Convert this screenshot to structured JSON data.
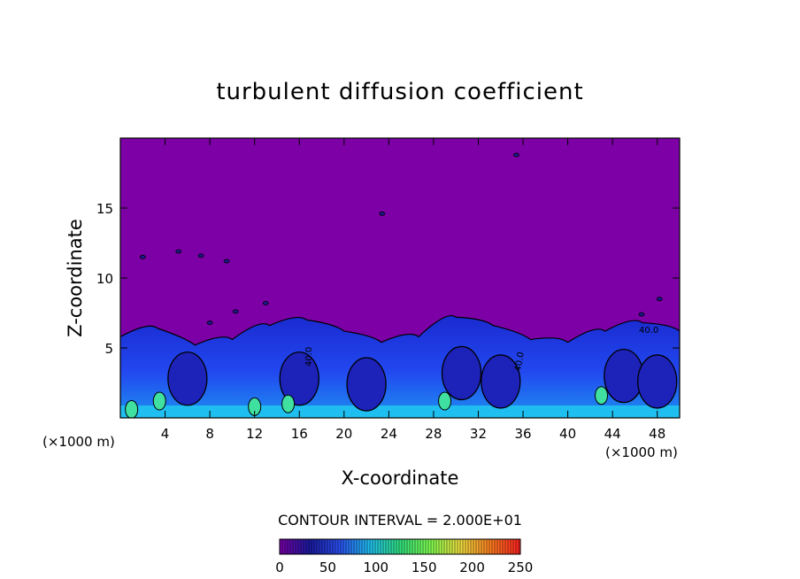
{
  "chart_data": {
    "type": "heatmap",
    "title": "turbulent diffusion coefficient",
    "xlabel": "X-coordinate",
    "ylabel": "Z-coordinate",
    "x_unit_left": "(×1000 m)",
    "x_unit_right": "(×1000 m)",
    "xlim": [
      0,
      50
    ],
    "ylim": [
      0,
      20
    ],
    "xticks": [
      "4",
      "8",
      "12",
      "16",
      "20",
      "24",
      "28",
      "32",
      "36",
      "40",
      "44",
      "48"
    ],
    "yticks": [
      "5",
      "10",
      "15"
    ],
    "background_value": 0,
    "turbulent_layer_top_km": [
      5.8,
      6.4,
      5.2,
      5.6,
      6.6,
      7.0,
      6.2,
      5.4,
      5.8,
      7.2,
      6.6,
      5.6,
      5.4,
      6.2,
      6.8,
      6.2
    ],
    "contour_interval_label": "CONTOUR INTERVAL = 2.000E+01",
    "colorbar": {
      "min": 0,
      "max": 250,
      "ticks": [
        "0",
        "50",
        "100",
        "150",
        "200",
        "250"
      ],
      "colors": [
        "#7a00a8",
        "#1a1aa0",
        "#2a50f0",
        "#20c0f0",
        "#30e080",
        "#80ff50",
        "#f0e040",
        "#ff8020",
        "#ff2020"
      ]
    },
    "contour_labels": [
      "40.0",
      "40.0",
      "40.0"
    ],
    "grid": false
  }
}
